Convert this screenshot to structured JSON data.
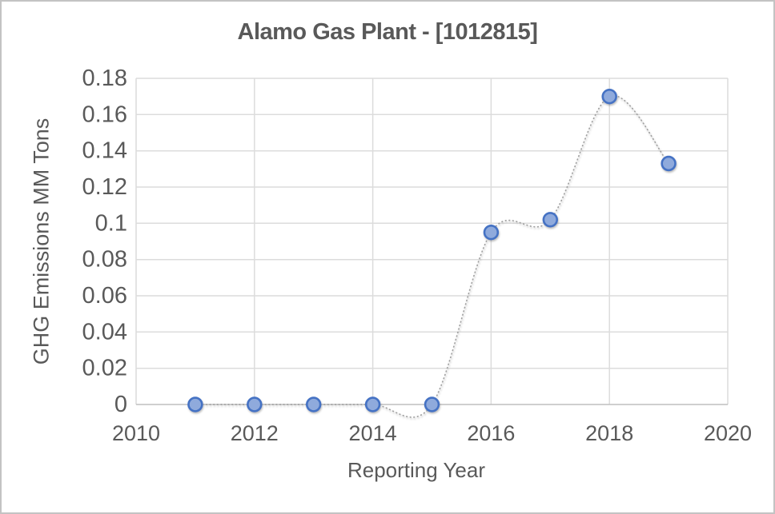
{
  "window": {
    "background_color": "#FFFFFF",
    "border_color": "#C3C3C3"
  },
  "chart_data": {
    "type": "scatter",
    "title": "Alamo Gas Plant - [1012815]",
    "xlabel": "Reporting Year",
    "ylabel": "GHG Emissions MM Tons",
    "x": [
      2011,
      2012,
      2013,
      2014,
      2015,
      2016,
      2017,
      2018,
      2019
    ],
    "values": [
      0,
      0,
      0,
      0,
      0,
      0.095,
      0.102,
      0.17,
      0.133
    ],
    "xlim": [
      2010,
      2020
    ],
    "ylim": [
      0,
      0.18
    ],
    "x_ticks": [
      {
        "value": 2010,
        "label": "2010"
      },
      {
        "value": 2012,
        "label": "2012"
      },
      {
        "value": 2014,
        "label": "2014"
      },
      {
        "value": 2016,
        "label": "2016"
      },
      {
        "value": 2018,
        "label": "2018"
      },
      {
        "value": 2020,
        "label": "2020"
      }
    ],
    "y_ticks": [
      {
        "value": 0,
        "label": "0"
      },
      {
        "value": 0.02,
        "label": "0.02"
      },
      {
        "value": 0.04,
        "label": "0.04"
      },
      {
        "value": 0.06,
        "label": "0.06"
      },
      {
        "value": 0.08,
        "label": "0.08"
      },
      {
        "value": 0.1,
        "label": "0.1"
      },
      {
        "value": 0.12,
        "label": "0.12"
      },
      {
        "value": 0.14,
        "label": "0.14"
      },
      {
        "value": 0.16,
        "label": "0.16"
      },
      {
        "value": 0.18,
        "label": "0.18"
      }
    ],
    "grid": true,
    "legend_position": "none",
    "line": {
      "style": "dotted",
      "smooth": true,
      "color": "#A0A0A0"
    },
    "marker": {
      "shape": "circle",
      "fill": "#8FAADC",
      "stroke": "#4472C4"
    },
    "text_color": "#595959",
    "gridline_color": "#DCDCDC",
    "axis_line_color": "#BFBFBF"
  }
}
